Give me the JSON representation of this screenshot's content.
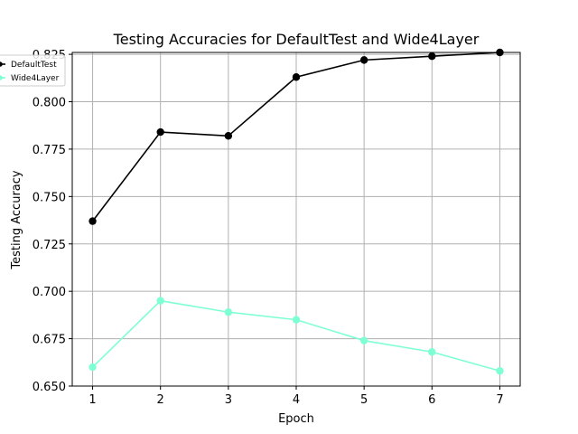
{
  "chart_data": {
    "type": "line",
    "title": "Testing Accuracies for DefaultTest and Wide4Layer",
    "xlabel": "Epoch",
    "ylabel": "Testing Accuracy",
    "x": [
      1,
      2,
      3,
      4,
      5,
      6,
      7
    ],
    "x_ticks": [
      "1",
      "2",
      "3",
      "4",
      "5",
      "6",
      "7"
    ],
    "ylim": [
      0.65,
      0.825
    ],
    "y_ticks": [
      "0.650",
      "0.675",
      "0.700",
      "0.725",
      "0.750",
      "0.775",
      "0.800",
      "0.825"
    ],
    "grid": true,
    "legend_position": "upper-left",
    "series": [
      {
        "name": "DefaultTest",
        "color": "#000000",
        "values": [
          0.737,
          0.784,
          0.782,
          0.813,
          0.822,
          0.824,
          0.826
        ]
      },
      {
        "name": "Wide4Layer",
        "color": "#7fffd4",
        "values": [
          0.66,
          0.695,
          0.689,
          0.685,
          0.674,
          0.668,
          0.658
        ]
      }
    ]
  }
}
